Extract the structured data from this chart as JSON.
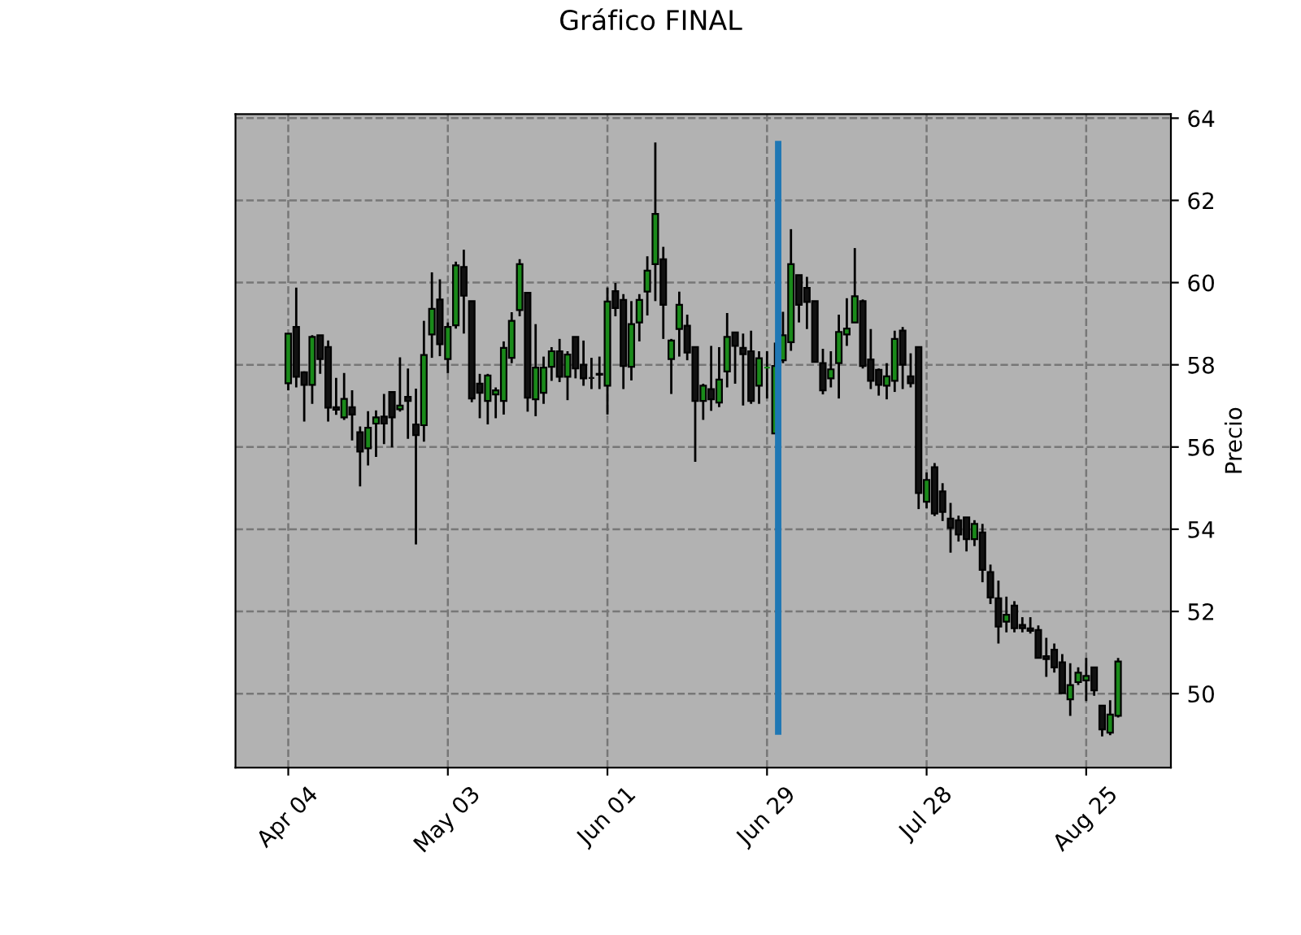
{
  "chart_data": {
    "type": "candlestick",
    "title": "Gráfico FINAL",
    "ylabel": "Precio",
    "categories": [
      "Apr 04",
      null,
      null,
      null,
      null,
      null,
      null,
      null,
      null,
      null,
      null,
      null,
      null,
      null,
      null,
      null,
      null,
      null,
      null,
      null,
      "May 03",
      null,
      null,
      null,
      null,
      null,
      null,
      null,
      null,
      null,
      null,
      null,
      null,
      null,
      null,
      null,
      null,
      null,
      null,
      null,
      "Jun 01",
      null,
      null,
      null,
      null,
      null,
      null,
      null,
      null,
      null,
      null,
      null,
      null,
      null,
      null,
      null,
      null,
      null,
      null,
      null,
      "Jun 29",
      null,
      null,
      null,
      null,
      null,
      null,
      null,
      null,
      null,
      null,
      null,
      null,
      null,
      null,
      null,
      null,
      null,
      null,
      null,
      "Jul 28",
      null,
      null,
      null,
      null,
      null,
      null,
      null,
      null,
      null,
      null,
      null,
      null,
      null,
      null,
      null,
      null,
      null,
      null,
      null,
      "Aug 25",
      null,
      null,
      null,
      null
    ],
    "ohlc": [
      [
        57.55,
        58.76,
        57.38,
        58.76
      ],
      [
        58.92,
        59.88,
        57.45,
        57.71
      ],
      [
        57.82,
        57.84,
        56.62,
        57.51
      ],
      [
        57.51,
        58.72,
        57.05,
        58.68
      ],
      [
        58.72,
        58.72,
        57.78,
        58.14
      ],
      [
        58.43,
        58.59,
        56.62,
        56.96
      ],
      [
        56.97,
        57.68,
        56.78,
        56.91
      ],
      [
        56.72,
        57.8,
        56.66,
        57.17
      ],
      [
        56.97,
        57.38,
        56.16,
        56.79
      ],
      [
        56.36,
        56.5,
        55.04,
        55.89
      ],
      [
        55.97,
        56.87,
        55.55,
        56.47
      ],
      [
        56.57,
        56.89,
        55.76,
        56.72
      ],
      [
        56.74,
        57.29,
        56.07,
        56.57
      ],
      [
        57.34,
        57.34,
        55.99,
        56.72
      ],
      [
        56.92,
        58.18,
        56.86,
        57.01
      ],
      [
        57.22,
        57.91,
        56.2,
        57.12
      ],
      [
        56.55,
        57.42,
        53.63,
        56.29
      ],
      [
        56.53,
        59.07,
        56.13,
        58.24
      ],
      [
        58.74,
        60.25,
        58.17,
        59.36
      ],
      [
        59.59,
        60.08,
        58.21,
        58.5
      ],
      [
        58.14,
        59.03,
        57.8,
        58.92
      ],
      [
        58.96,
        60.51,
        58.88,
        60.42
      ],
      [
        60.38,
        60.8,
        58.76,
        59.68
      ],
      [
        59.55,
        59.55,
        57.09,
        57.18
      ],
      [
        57.54,
        57.78,
        56.7,
        57.32
      ],
      [
        57.12,
        57.78,
        56.55,
        57.74
      ],
      [
        57.28,
        57.45,
        56.7,
        57.38
      ],
      [
        57.12,
        58.57,
        56.79,
        58.41
      ],
      [
        58.17,
        59.28,
        58.04,
        59.07
      ],
      [
        59.33,
        60.57,
        59.18,
        60.45
      ],
      [
        59.75,
        59.75,
        56.86,
        57.2
      ],
      [
        57.16,
        58.99,
        56.75,
        57.93
      ],
      [
        57.32,
        58.2,
        57.05,
        57.93
      ],
      [
        57.95,
        58.43,
        57.61,
        58.33
      ],
      [
        58.33,
        58.63,
        57.58,
        57.71
      ],
      [
        57.71,
        58.33,
        57.14,
        58.25
      ],
      [
        58.68,
        58.68,
        57.67,
        57.91
      ],
      [
        58.0,
        58.59,
        57.49,
        57.67
      ],
      [
        57.68,
        58.17,
        57.41,
        57.68
      ],
      [
        57.78,
        58.2,
        57.41,
        57.76
      ],
      [
        57.49,
        59.88,
        56.79,
        59.54
      ],
      [
        59.79,
        59.99,
        59.18,
        59.38
      ],
      [
        59.58,
        59.72,
        57.41,
        57.97
      ],
      [
        57.95,
        59.55,
        57.62,
        58.99
      ],
      [
        59.03,
        59.72,
        58.57,
        59.58
      ],
      [
        59.78,
        60.64,
        59.2,
        60.29
      ],
      [
        60.45,
        63.41,
        59.55,
        61.67
      ],
      [
        60.57,
        60.87,
        58.63,
        59.46
      ],
      [
        58.14,
        58.63,
        57.29,
        58.59
      ],
      [
        58.87,
        59.78,
        58.2,
        59.46
      ],
      [
        58.95,
        59.22,
        58.11,
        58.3
      ],
      [
        58.43,
        58.43,
        55.64,
        57.12
      ],
      [
        57.12,
        57.54,
        56.66,
        57.49
      ],
      [
        57.41,
        58.46,
        56.88,
        57.16
      ],
      [
        57.08,
        58.43,
        56.97,
        57.64
      ],
      [
        57.84,
        59.26,
        57.45,
        58.68
      ],
      [
        58.79,
        58.79,
        57.54,
        58.46
      ],
      [
        58.41,
        58.76,
        57.01,
        58.26
      ],
      [
        58.33,
        58.83,
        57.05,
        57.12
      ],
      [
        57.49,
        58.33,
        57.05,
        58.16
      ],
      [
        57.93,
        58.33,
        57.18,
        57.93
      ],
      [
        56.33,
        58.54,
        56.33,
        57.97
      ],
      [
        58.11,
        59.29,
        58.04,
        58.72
      ],
      [
        58.55,
        61.3,
        58.34,
        60.45
      ],
      [
        60.18,
        60.18,
        59.03,
        59.46
      ],
      [
        59.87,
        60.14,
        58.87,
        59.53
      ],
      [
        59.55,
        59.55,
        58.07,
        58.07
      ],
      [
        58.04,
        58.39,
        57.28,
        57.38
      ],
      [
        57.67,
        58.33,
        57.45,
        57.89
      ],
      [
        58.04,
        59.22,
        57.18,
        58.8
      ],
      [
        58.74,
        59.62,
        58.46,
        58.88
      ],
      [
        59.03,
        60.84,
        59.03,
        59.67
      ],
      [
        59.55,
        59.59,
        57.91,
        57.97
      ],
      [
        58.13,
        58.87,
        57.41,
        57.61
      ],
      [
        57.88,
        57.91,
        57.25,
        57.51
      ],
      [
        57.49,
        58.04,
        57.16,
        57.72
      ],
      [
        57.61,
        58.83,
        57.34,
        58.63
      ],
      [
        58.83,
        58.92,
        57.41,
        58.0
      ],
      [
        57.72,
        58.28,
        57.45,
        57.55
      ],
      [
        58.43,
        58.43,
        54.49,
        54.88
      ],
      [
        54.67,
        55.38,
        54.51,
        55.2
      ],
      [
        55.51,
        55.61,
        54.32,
        54.38
      ],
      [
        54.92,
        55.12,
        54.2,
        54.42
      ],
      [
        54.26,
        54.64,
        53.43,
        54.03
      ],
      [
        54.22,
        54.33,
        53.7,
        53.87
      ],
      [
        54.29,
        54.29,
        53.46,
        53.76
      ],
      [
        53.76,
        54.22,
        53.59,
        54.13
      ],
      [
        53.92,
        54.13,
        52.71,
        53.01
      ],
      [
        52.96,
        53.14,
        52.18,
        52.34
      ],
      [
        52.32,
        52.75,
        51.22,
        51.63
      ],
      [
        51.75,
        52.36,
        51.49,
        51.92
      ],
      [
        52.14,
        52.25,
        51.49,
        51.59
      ],
      [
        51.67,
        51.86,
        51.49,
        51.59
      ],
      [
        51.59,
        51.86,
        51.46,
        51.53
      ],
      [
        51.55,
        51.66,
        50.87,
        50.87
      ],
      [
        50.91,
        51.36,
        50.41,
        50.84
      ],
      [
        51.07,
        51.22,
        50.51,
        50.64
      ],
      [
        50.76,
        50.96,
        50.01,
        50.01
      ],
      [
        49.86,
        50.74,
        49.46,
        50.21
      ],
      [
        50.28,
        50.64,
        50.21,
        50.51
      ],
      [
        50.32,
        50.87,
        49.82,
        50.43
      ],
      [
        50.64,
        50.64,
        49.95,
        50.08
      ],
      [
        49.71,
        49.71,
        48.96,
        49.13
      ],
      [
        49.05,
        49.84,
        48.99,
        49.49
      ],
      [
        49.46,
        50.87,
        49.42,
        50.78
      ]
    ],
    "colors": [
      "#1a8a1a",
      "#111111",
      "#111111",
      "#1a8a1a",
      "#111111",
      "#111111",
      "#111111",
      "#1a8a1a",
      "#111111",
      "#111111",
      "#1a8a1a",
      "#1a8a1a",
      "#111111",
      "#111111",
      "#1a8a1a",
      "#111111",
      "#111111",
      "#1a8a1a",
      "#1a8a1a",
      "#111111",
      "#1a8a1a",
      "#1a8a1a",
      "#111111",
      "#111111",
      "#111111",
      "#1a8a1a",
      "#1a8a1a",
      "#1a8a1a",
      "#1a8a1a",
      "#1a8a1a",
      "#111111",
      "#1a8a1a",
      "#1a8a1a",
      "#1a8a1a",
      "#111111",
      "#1a8a1a",
      "#111111",
      "#111111",
      "#111111",
      "#111111",
      "#1a8a1a",
      "#111111",
      "#111111",
      "#1a8a1a",
      "#1a8a1a",
      "#1a8a1a",
      "#1a8a1a",
      "#111111",
      "#1a8a1a",
      "#1a8a1a",
      "#111111",
      "#111111",
      "#1a8a1a",
      "#111111",
      "#1a8a1a",
      "#1a8a1a",
      "#111111",
      "#111111",
      "#111111",
      "#1a8a1a",
      "#1a8a1a",
      "#1a8a1a",
      "#1a8a1a",
      "#1a8a1a",
      "#111111",
      "#111111",
      "#111111",
      "#111111",
      "#1a8a1a",
      "#1a8a1a",
      "#1a8a1a",
      "#1a8a1a",
      "#111111",
      "#111111",
      "#111111",
      "#1a8a1a",
      "#1a8a1a",
      "#111111",
      "#111111",
      "#111111",
      "#1a8a1a",
      "#111111",
      "#111111",
      "#111111",
      "#111111",
      "#111111",
      "#1a8a1a",
      "#111111",
      "#111111",
      "#111111",
      "#1a8a1a",
      "#111111",
      "#111111",
      "#111111",
      "#111111",
      "#111111",
      "#111111",
      "#111111",
      "#1a8a1a",
      "#1a8a1a",
      "#1a8a1a",
      "#111111",
      "#111111",
      "#1a8a1a",
      "#1a8a1a"
    ],
    "series": [
      {
        "type": "bar",
        "color": "#1f77b4",
        "values": [
          null,
          null,
          null,
          null,
          null,
          null,
          null,
          null,
          null,
          null,
          null,
          null,
          null,
          null,
          null,
          null,
          null,
          null,
          null,
          null,
          null,
          null,
          null,
          null,
          null,
          null,
          null,
          null,
          null,
          null,
          null,
          null,
          null,
          null,
          null,
          null,
          null,
          null,
          null,
          null,
          null,
          null,
          null,
          null,
          null,
          null,
          null,
          null,
          null,
          null,
          null,
          null,
          null,
          null,
          null,
          null,
          null,
          null,
          null,
          null,
          null,
          14.45,
          null,
          null,
          null,
          null,
          null,
          null,
          null,
          null,
          null,
          null,
          null,
          null,
          null,
          null,
          null,
          null,
          null,
          null,
          null,
          null,
          null,
          null,
          null,
          null,
          null,
          null,
          null,
          null,
          null,
          null,
          null,
          null,
          null,
          null,
          null,
          null,
          null,
          null,
          null,
          null,
          null,
          null,
          null
        ],
        "base": [
          null,
          null,
          null,
          null,
          null,
          null,
          null,
          null,
          null,
          null,
          null,
          null,
          null,
          null,
          null,
          null,
          null,
          null,
          null,
          null,
          null,
          null,
          null,
          null,
          null,
          null,
          null,
          null,
          null,
          null,
          null,
          null,
          null,
          null,
          null,
          null,
          null,
          null,
          null,
          null,
          null,
          null,
          null,
          null,
          null,
          null,
          null,
          null,
          null,
          null,
          null,
          null,
          null,
          null,
          null,
          null,
          null,
          null,
          null,
          null,
          null,
          49.0,
          null,
          null,
          null,
          null,
          null,
          null,
          null,
          null,
          null,
          null,
          null,
          null,
          null,
          null,
          null,
          null,
          null,
          null,
          null,
          null,
          null,
          null,
          null,
          null,
          null,
          null,
          null,
          null,
          null,
          null,
          null,
          null,
          null,
          null,
          null,
          null,
          null,
          null,
          null,
          null,
          null,
          null,
          null
        ]
      }
    ],
    "ylim": [
      48.2,
      64.1
    ],
    "yticks": [
      50,
      52,
      54,
      56,
      58,
      60,
      62,
      64
    ],
    "grid": true,
    "line_style": "dashed"
  }
}
